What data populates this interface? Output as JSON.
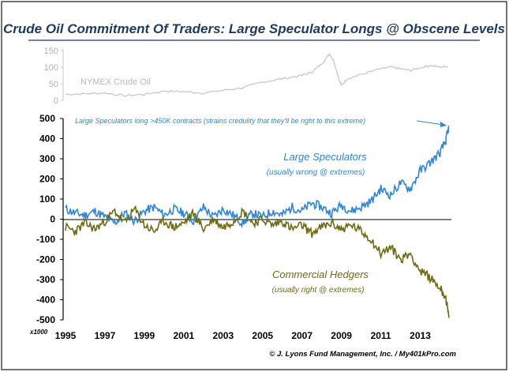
{
  "title": "Crude Oil Commitment Of Traders: Large Speculator Longs @ Obscene Levels",
  "footer": "© J. Lyons Fund Management, Inc. / My401kPro.com",
  "colors": {
    "title": "#1f3a5c",
    "speculators": "#2f86d6",
    "hedgers": "#6b6b12",
    "crude": "#c8c8c8",
    "annotation": "#2f86d6"
  },
  "chart_data": [
    {
      "type": "line",
      "title": "",
      "series": [
        {
          "name": "NYMEX Crude Oil",
          "x": [
            1995,
            1996,
            1997,
            1998,
            1999,
            2000,
            2001,
            2002,
            2003,
            2004,
            2005,
            2006,
            2007,
            2007.5,
            2008,
            2008.4,
            2008.6,
            2008.9,
            2009,
            2009.3,
            2010,
            2011,
            2011.5,
            2012,
            2012.5,
            2013,
            2013.5,
            2014,
            2014.4
          ],
          "values": [
            18,
            20,
            22,
            14,
            18,
            28,
            26,
            22,
            30,
            38,
            55,
            65,
            75,
            85,
            110,
            140,
            120,
            60,
            45,
            65,
            78,
            95,
            100,
            95,
            90,
            98,
            105,
            100,
            103
          ]
        }
      ],
      "ylim": [
        0,
        150
      ],
      "yticks": [
        0,
        50,
        100,
        150
      ]
    },
    {
      "type": "line",
      "title": "",
      "unit_label": "x1000",
      "xticks": [
        "1995",
        "1997",
        "1999",
        "2001",
        "2003",
        "2005",
        "2007",
        "2009",
        "2011",
        "2013"
      ],
      "yticks": [
        500,
        400,
        300,
        200,
        100,
        0,
        -100,
        -200,
        -300,
        -400,
        -500
      ],
      "ylim": [
        -500,
        500
      ],
      "xlim": [
        1995,
        2014.5
      ],
      "series": [
        {
          "name": "Large Speculators",
          "note": "(usually wrong @ extremes)",
          "x": [
            1995,
            1995.5,
            1996,
            1996.5,
            1997,
            1997.5,
            1998,
            1998.5,
            1999,
            1999.5,
            2000,
            2000.5,
            2001,
            2001.5,
            2002,
            2002.5,
            2003,
            2003.5,
            2004,
            2004.5,
            2005,
            2005.5,
            2006,
            2006.5,
            2007,
            2007.5,
            2008,
            2008.5,
            2009,
            2009.5,
            2010,
            2010.5,
            2011,
            2011.5,
            2012,
            2012.5,
            2013,
            2013.5,
            2014,
            2014.3,
            2014.45
          ],
          "values": [
            50,
            30,
            20,
            40,
            10,
            -20,
            30,
            -10,
            40,
            60,
            20,
            50,
            30,
            -10,
            60,
            10,
            50,
            20,
            -20,
            30,
            10,
            40,
            20,
            60,
            40,
            80,
            60,
            30,
            70,
            40,
            60,
            90,
            150,
            120,
            180,
            150,
            240,
            280,
            330,
            390,
            460
          ]
        },
        {
          "name": "Commercial Hedgers",
          "note": "(usually right @ extremes)",
          "x": [
            1995,
            1995.5,
            1996,
            1996.5,
            1997,
            1997.5,
            1998,
            1998.5,
            1999,
            1999.5,
            2000,
            2000.5,
            2001,
            2001.5,
            2002,
            2002.5,
            2003,
            2003.5,
            2004,
            2004.5,
            2005,
            2005.5,
            2006,
            2006.5,
            2007,
            2007.5,
            2008,
            2008.5,
            2009,
            2009.5,
            2010,
            2010.5,
            2011,
            2011.5,
            2012,
            2012.5,
            2013,
            2013.5,
            2014,
            2014.3,
            2014.45
          ],
          "values": [
            -40,
            -60,
            -20,
            -50,
            -10,
            40,
            -20,
            50,
            -30,
            -60,
            -10,
            -40,
            -20,
            30,
            -50,
            0,
            -40,
            -10,
            40,
            -20,
            0,
            -30,
            -10,
            -50,
            -30,
            -70,
            -40,
            -20,
            -50,
            -30,
            -60,
            -100,
            -170,
            -140,
            -200,
            -170,
            -260,
            -290,
            -340,
            -390,
            -490
          ]
        }
      ],
      "annotations": [
        "Large Speculators long >450K contracts (strains credulity that they'll be right to this extreme)"
      ]
    }
  ]
}
